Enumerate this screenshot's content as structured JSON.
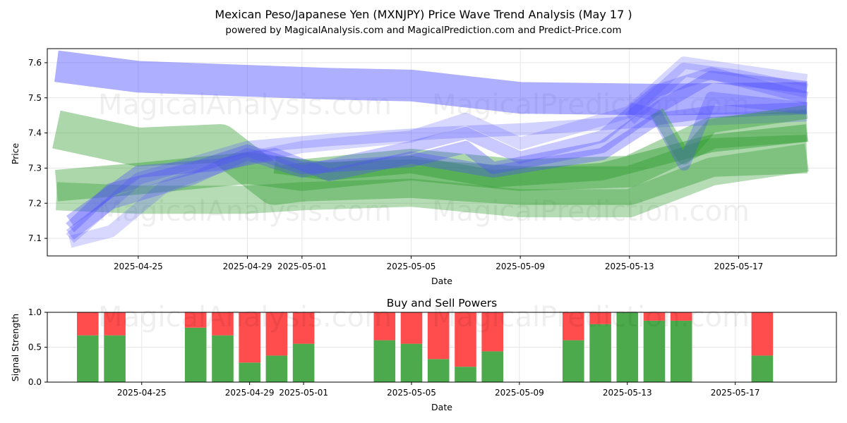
{
  "figure": {
    "title_line1": "Mexican Peso/Japanese Yen (MXNJPY) Price Wave Trend Analysis (May 17 )",
    "title_line2": "powered by MagicalAnalysis.com and MagicalPrediction.com and Predict-Price.com",
    "watermarks": [
      "MagicalAnalysis.com",
      "MagicalPrediction.com"
    ]
  },
  "chart_data": [
    {
      "type": "area",
      "title": "",
      "xlabel": "Date",
      "ylabel": "Price",
      "xlim": [
        "2025-04-21T16:00",
        "2025-05-20T14:00"
      ],
      "ylim": [
        7.05,
        7.64
      ],
      "xticks": [
        "2025-04-25",
        "2025-04-29",
        "2025-05-01",
        "2025-05-05",
        "2025-05-09",
        "2025-05-13",
        "2025-05-17"
      ],
      "yticks": [
        7.1,
        7.2,
        7.3,
        7.4,
        7.5,
        7.6
      ],
      "grid": true,
      "colors": {
        "blue_band": "#4d4dff",
        "green_band": "#2e9b2e"
      },
      "bands": [
        {
          "color": "blue",
          "opacity": 0.45,
          "points": [
            [
              "2025-04-22T00:00",
              7.59
            ],
            [
              "2025-04-25T00:00",
              7.56
            ],
            [
              "2025-05-02T00:00",
              7.54
            ],
            [
              "2025-05-05T00:00",
              7.535
            ],
            [
              "2025-05-09T00:00",
              7.5
            ],
            [
              "2025-05-14T00:00",
              7.495
            ],
            [
              "2025-05-19T12:00",
              7.5
            ]
          ],
          "width": 0.09
        },
        {
          "color": "green",
          "opacity": 0.4,
          "points": [
            [
              "2025-04-22T00:00",
              7.25
            ],
            [
              "2025-04-25T00:00",
              7.27
            ],
            [
              "2025-04-29T00:00",
              7.3
            ],
            [
              "2025-05-01T00:00",
              7.28
            ],
            [
              "2025-05-05T00:00",
              7.31
            ],
            [
              "2025-05-09T00:00",
              7.28
            ],
            [
              "2025-05-13T00:00",
              7.29
            ],
            [
              "2025-05-16T00:00",
              7.4
            ],
            [
              "2025-05-19T12:00",
              7.42
            ]
          ],
          "width": 0.09
        },
        {
          "color": "green",
          "opacity": 0.4,
          "points": [
            [
              "2025-04-22T00:00",
              7.41
            ],
            [
              "2025-04-25T00:00",
              7.36
            ],
            [
              "2025-04-28T00:00",
              7.37
            ],
            [
              "2025-04-30T00:00",
              7.25
            ],
            [
              "2025-05-01T00:00",
              7.26
            ],
            [
              "2025-05-05T00:00",
              7.27
            ],
            [
              "2025-05-09T00:00",
              7.25
            ],
            [
              "2025-05-13T00:00",
              7.25
            ],
            [
              "2025-05-16T00:00",
              7.33
            ],
            [
              "2025-05-19T12:00",
              7.34
            ]
          ],
          "width": 0.11
        },
        {
          "color": "green",
          "opacity": 0.35,
          "points": [
            [
              "2025-04-22T00:00",
              7.22
            ],
            [
              "2025-04-25T00:00",
              7.21
            ],
            [
              "2025-04-29T00:00",
              7.21
            ],
            [
              "2025-05-01T00:00",
              7.22
            ],
            [
              "2025-05-05T00:00",
              7.23
            ],
            [
              "2025-05-09T00:00",
              7.2
            ],
            [
              "2025-05-13T00:00",
              7.2
            ],
            [
              "2025-05-16T00:00",
              7.29
            ],
            [
              "2025-05-19T12:00",
              7.33
            ]
          ],
          "width": 0.08
        },
        {
          "color": "green",
          "opacity": 0.45,
          "points": [
            [
              "2025-04-30T00:00",
              7.31
            ],
            [
              "2025-05-02T00:00",
              7.29
            ],
            [
              "2025-05-05T00:00",
              7.31
            ],
            [
              "2025-05-08T00:00",
              7.27
            ],
            [
              "2025-05-12T00:00",
              7.29
            ],
            [
              "2025-05-16T00:00",
              7.37
            ],
            [
              "2025-05-19T12:00",
              7.4
            ]
          ],
          "width": 0.05
        },
        {
          "color": "blue",
          "opacity": 0.35,
          "points": [
            [
              "2025-04-22T12:00",
              7.13
            ],
            [
              "2025-04-24T00:00",
              7.24
            ],
            [
              "2025-04-27T00:00",
              7.3
            ],
            [
              "2025-04-29T00:00",
              7.35
            ],
            [
              "2025-05-01T00:00",
              7.3
            ],
            [
              "2025-05-05T00:00",
              7.32
            ],
            [
              "2025-05-07T00:00",
              7.36
            ],
            [
              "2025-05-08T00:00",
              7.3
            ],
            [
              "2025-05-12T00:00",
              7.36
            ],
            [
              "2025-05-14T00:00",
              7.47
            ],
            [
              "2025-05-16T00:00",
              7.56
            ],
            [
              "2025-05-19T12:00",
              7.53
            ]
          ],
          "width": 0.035
        },
        {
          "color": "blue",
          "opacity": 0.3,
          "points": [
            [
              "2025-04-22T12:00",
              7.11
            ],
            [
              "2025-04-24T00:00",
              7.2
            ],
            [
              "2025-04-27T00:00",
              7.27
            ],
            [
              "2025-04-29T00:00",
              7.34
            ],
            [
              "2025-05-01T00:00",
              7.29
            ],
            [
              "2025-05-05T00:00",
              7.36
            ],
            [
              "2025-05-07T00:00",
              7.4
            ],
            [
              "2025-05-09T00:00",
              7.33
            ],
            [
              "2025-05-12T00:00",
              7.39
            ],
            [
              "2025-05-14T00:00",
              7.52
            ],
            [
              "2025-05-16T00:00",
              7.57
            ],
            [
              "2025-05-19T12:00",
              7.5
            ]
          ],
          "width": 0.035
        },
        {
          "color": "blue",
          "opacity": 0.22,
          "points": [
            [
              "2025-04-22T12:00",
              7.09
            ],
            [
              "2025-04-24T00:00",
              7.12
            ],
            [
              "2025-04-26T00:00",
              7.25
            ],
            [
              "2025-04-29T00:00",
              7.33
            ],
            [
              "2025-05-01T00:00",
              7.36
            ],
            [
              "2025-05-05T00:00",
              7.39
            ],
            [
              "2025-05-07T00:00",
              7.44
            ],
            [
              "2025-05-09T00:00",
              7.37
            ],
            [
              "2025-05-13T00:00",
              7.46
            ],
            [
              "2025-05-15T00:00",
              7.6
            ],
            [
              "2025-05-19T12:00",
              7.55
            ]
          ],
          "width": 0.035
        },
        {
          "color": "blue",
          "opacity": 0.35,
          "points": [
            [
              "2025-04-22T12:00",
              7.15
            ],
            [
              "2025-04-25T00:00",
              7.29
            ],
            [
              "2025-04-28T00:00",
              7.31
            ],
            [
              "2025-04-30T00:00",
              7.34
            ],
            [
              "2025-05-02T00:00",
              7.28
            ],
            [
              "2025-05-05T00:00",
              7.33
            ],
            [
              "2025-05-08T00:00",
              7.29
            ],
            [
              "2025-05-12T00:00",
              7.34
            ],
            [
              "2025-05-14T00:00",
              7.44
            ],
            [
              "2025-05-16T00:00",
              7.46
            ],
            [
              "2025-05-19T12:00",
              7.47
            ]
          ],
          "width": 0.035
        },
        {
          "color": "blue",
          "opacity": 0.25,
          "points": [
            [
              "2025-04-22T12:00",
              7.1
            ],
            [
              "2025-04-25T00:00",
              7.27
            ],
            [
              "2025-04-29T00:00",
              7.36
            ],
            [
              "2025-05-02T00:00",
              7.38
            ],
            [
              "2025-05-06T00:00",
              7.4
            ],
            [
              "2025-05-09T00:00",
              7.41
            ],
            [
              "2025-05-13T00:00",
              7.43
            ],
            [
              "2025-05-19T12:00",
              7.45
            ]
          ],
          "width": 0.035
        },
        {
          "color": "green",
          "opacity": 0.4,
          "points": [
            [
              "2025-05-14T00:00",
              7.46
            ],
            [
              "2025-05-15T00:00",
              7.33
            ],
            [
              "2025-05-16T00:00",
              7.42
            ],
            [
              "2025-05-19T12:00",
              7.46
            ]
          ],
          "width": 0.04
        },
        {
          "color": "blue",
          "opacity": 0.3,
          "points": [
            [
              "2025-05-13T00:00",
              7.47
            ],
            [
              "2025-05-14T00:00",
              7.45
            ],
            [
              "2025-05-15T00:00",
              7.31
            ],
            [
              "2025-05-16T00:00",
              7.5
            ],
            [
              "2025-05-19T12:00",
              7.47
            ]
          ],
          "width": 0.035
        },
        {
          "color": "blue",
          "opacity": 0.25,
          "points": [
            [
              "2025-05-13T00:00",
              7.44
            ],
            [
              "2025-05-15T00:00",
              7.58
            ],
            [
              "2025-05-17T00:00",
              7.56
            ],
            [
              "2025-05-19T12:00",
              7.52
            ]
          ],
          "width": 0.04
        }
      ]
    },
    {
      "type": "bar",
      "title": "Buy and Sell Powers",
      "xlabel": "Date",
      "ylabel": "Signal Strength",
      "ylim": [
        0.0,
        1.0
      ],
      "yticks": [
        0.0,
        0.5,
        1.0
      ],
      "xticks": [
        "2025-04-25",
        "2025-04-29",
        "2025-05-01",
        "2025-05-05",
        "2025-05-09",
        "2025-05-13",
        "2025-05-17"
      ],
      "grid": true,
      "colors": {
        "buy": "#4caa4c",
        "sell": "#ff4c4c"
      },
      "dates": [
        "2025-04-23",
        "2025-04-24",
        "2025-04-27",
        "2025-04-28",
        "2025-04-29",
        "2025-04-30",
        "2025-05-01",
        "2025-05-04",
        "2025-05-05",
        "2025-05-06",
        "2025-05-07",
        "2025-05-08",
        "2025-05-11",
        "2025-05-12",
        "2025-05-13",
        "2025-05-14",
        "2025-05-15",
        "2025-05-18"
      ],
      "series": [
        {
          "name": "",
          "values": [
            0.67,
            0.67,
            0.78,
            0.67,
            0.28,
            0.38,
            0.55,
            0.6,
            0.55,
            0.33,
            0.22,
            0.44,
            0.6,
            0.83,
            1.0,
            0.88,
            0.88,
            0.38
          ]
        },
        {
          "name": "",
          "values": [
            0.33,
            0.33,
            0.22,
            0.33,
            0.72,
            0.62,
            0.45,
            0.4,
            0.45,
            0.67,
            0.78,
            0.56,
            0.4,
            0.17,
            0.0,
            0.12,
            0.12,
            0.62
          ]
        }
      ]
    }
  ]
}
